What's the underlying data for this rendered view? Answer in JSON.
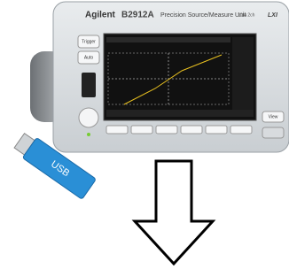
{
  "header": {
    "brand": "Agilent",
    "model": "B2912A",
    "subtitle": "Precision Source/Measure Unit",
    "spec": "10fA 2ch",
    "badge": "LXI"
  },
  "buttons": {
    "left": [
      "Trigger",
      "Auto"
    ],
    "right": "View"
  },
  "usb": {
    "label": "USB"
  }
}
